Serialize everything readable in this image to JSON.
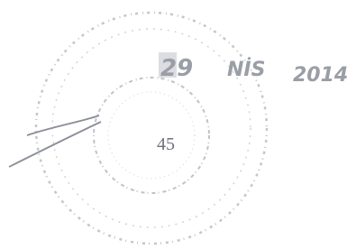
{
  "stamp": {
    "day": "29",
    "month": "NİS",
    "year": "2014",
    "number": "45"
  }
}
